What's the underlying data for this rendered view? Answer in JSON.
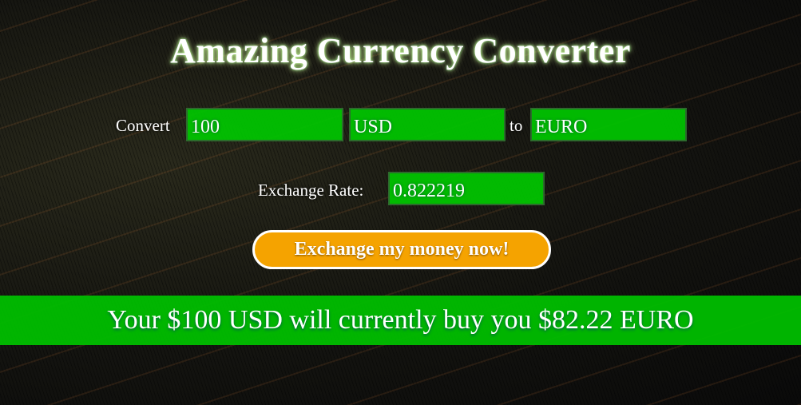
{
  "header": {
    "title": "Amazing Currency Converter"
  },
  "form": {
    "convert_label": "Convert",
    "amount": "100",
    "from_currency": "USD",
    "to_label": "to",
    "to_currency": "EURO",
    "rate_label": "Exchange Rate:",
    "rate": "0.822219",
    "button": "Exchange my money now!"
  },
  "result": {
    "text": "Your $100 USD will currently buy you $82.22 EURO"
  }
}
